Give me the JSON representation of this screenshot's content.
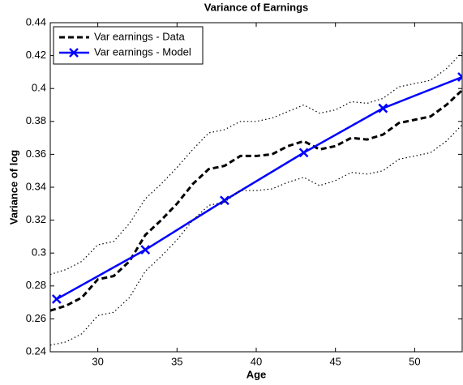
{
  "chart_data": {
    "type": "line",
    "title": "Variance of Earnings",
    "xlabel": "Age",
    "ylabel": "Variance of log",
    "x": [
      27,
      28,
      29,
      30,
      31,
      32,
      33,
      34,
      35,
      36,
      37,
      38,
      39,
      40,
      41,
      42,
      43,
      44,
      45,
      46,
      47,
      48,
      49,
      50,
      51,
      52,
      53
    ],
    "series": [
      {
        "name": "Var earnings - Data",
        "color": "#000000",
        "style": "dash",
        "width": 3,
        "values": [
          0.265,
          0.268,
          0.273,
          0.284,
          0.286,
          0.295,
          0.311,
          0.32,
          0.33,
          0.342,
          0.351,
          0.353,
          0.359,
          0.359,
          0.36,
          0.365,
          0.368,
          0.363,
          0.365,
          0.37,
          0.369,
          0.372,
          0.379,
          0.381,
          0.383,
          0.39,
          0.399
        ]
      },
      {
        "name": "Var earnings - Model",
        "color": "#0000ff",
        "style": "solid",
        "width": 2.5,
        "marker": "x",
        "x": [
          27.4,
          33,
          38,
          43,
          48,
          53
        ],
        "values": [
          0.272,
          0.302,
          0.332,
          0.361,
          0.388,
          0.407
        ]
      },
      {
        "color": "#000000",
        "style": "dot",
        "width": 1.2,
        "values": [
          0.287,
          0.29,
          0.295,
          0.305,
          0.307,
          0.318,
          0.333,
          0.342,
          0.352,
          0.363,
          0.373,
          0.375,
          0.38,
          0.38,
          0.382,
          0.386,
          0.39,
          0.385,
          0.387,
          0.392,
          0.391,
          0.394,
          0.401,
          0.403,
          0.405,
          0.412,
          0.422
        ]
      },
      {
        "color": "#000000",
        "style": "dot",
        "width": 1.2,
        "values": [
          0.244,
          0.246,
          0.251,
          0.262,
          0.264,
          0.273,
          0.289,
          0.298,
          0.308,
          0.32,
          0.329,
          0.331,
          0.338,
          0.338,
          0.339,
          0.343,
          0.346,
          0.341,
          0.344,
          0.349,
          0.348,
          0.35,
          0.357,
          0.359,
          0.361,
          0.368,
          0.378
        ]
      }
    ],
    "xlim": [
      27,
      53
    ],
    "xticks": [
      30,
      35,
      40,
      45,
      50
    ],
    "ylim": [
      0.24,
      0.44
    ],
    "yticks": [
      0.24,
      0.26,
      0.28,
      0.3,
      0.32,
      0.34,
      0.36,
      0.38,
      0.4,
      0.42,
      0.44
    ],
    "grid": false,
    "legend": "top-left"
  }
}
